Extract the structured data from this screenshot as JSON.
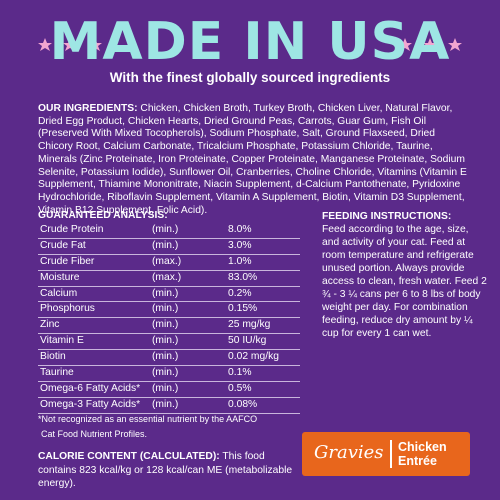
{
  "header": {
    "title": "MADE IN USA",
    "subtitle": "With the finest globally sourced ingredients"
  },
  "ingredients": {
    "label": "OUR INGREDIENTS:",
    "text": "Chicken, Chicken Broth, Turkey Broth, Chicken Liver, Natural Flavor, Dried Egg Product, Chicken Hearts, Dried Ground Peas, Carrots, Guar Gum, Fish Oil (Preserved With Mixed Tocopherols), Sodium Phosphate, Salt, Ground Flaxseed, Dried Chicory Root, Calcium Carbonate, Tricalcium Phosphate, Potassium Chloride, Taurine, Minerals (Zinc Proteinate, Iron Proteinate, Copper Proteinate, Manganese Proteinate, Sodium Selenite, Potassium Iodide), Sunflower Oil, Cranberries, Choline Chloride, Vitamins (Vitamin E Supplement, Thiamine Mononitrate, Niacin Supplement, d-Calcium Pantothenate, Pyridoxine Hydrochloride, Riboflavin Supplement, Vitamin A Supplement, Biotin, Vitamin D3 Supplement, Vitamin B12 Supplement, Folic Acid)."
  },
  "analysis": {
    "title": "GUARANTEED ANALYSIS:",
    "rows": [
      [
        "Crude Protein",
        "(min.)",
        "8.0%"
      ],
      [
        "Crude Fat",
        "(min.)",
        "3.0%"
      ],
      [
        "Crude Fiber",
        "(max.)",
        "1.0%"
      ],
      [
        "Moisture",
        "(max.)",
        "83.0%"
      ],
      [
        "Calcium",
        "(min.)",
        "0.2%"
      ],
      [
        "Phosphorus",
        "(min.)",
        "0.15%"
      ],
      [
        "Zinc",
        "(min.)",
        "25 mg/kg"
      ],
      [
        "Vitamin E",
        "(min.)",
        "50 IU/kg"
      ],
      [
        "Biotin",
        "(min.)",
        "0.02 mg/kg"
      ],
      [
        "Taurine",
        "(min.)",
        "0.1%"
      ],
      [
        "Omega-6 Fatty Acids*",
        "(min.)",
        "0.5%"
      ],
      [
        "Omega-3 Fatty Acids*",
        "(min.)",
        "0.08%"
      ]
    ]
  },
  "feeding": {
    "title": "FEEDING INSTRUCTIONS:",
    "text": "Feed according to the age, size, and activity of your cat. Feed at room temperature and refrigerate unused portion. Always provide access to clean, fresh water. Feed 2 ¾ - 3 ¼ cans per 6 to 8 lbs of body weight per day. For combination feeding, reduce dry amount by ¼ cup for every 1 can wet."
  },
  "footnote": [
    "*Not recognized as an essential nutrient by the AAFCO",
    "Cat Food Nutrient Profiles."
  ],
  "calorie": {
    "label": "CALORIE CONTENT (CALCULATED):",
    "text": "This food contains 823 kcal/kg or 128 kcal/can ME (metabolizable energy)."
  },
  "badge": {
    "brand": "Gravies",
    "flavor": [
      "Chicken",
      "Entrée"
    ]
  }
}
